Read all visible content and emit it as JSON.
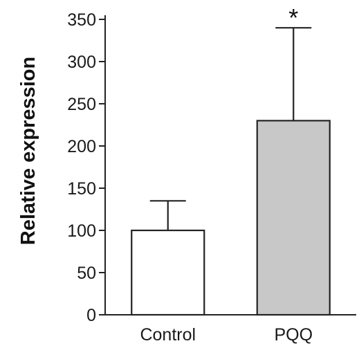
{
  "chart_data": {
    "type": "bar",
    "title": "",
    "xlabel": "",
    "ylabel": "Relative expression",
    "ylim": [
      0,
      350
    ],
    "yticks": [
      0,
      50,
      100,
      150,
      200,
      250,
      300,
      350
    ],
    "categories": [
      "Control",
      "PQQ"
    ],
    "values": [
      100,
      230
    ],
    "error_upper": [
      135,
      340
    ],
    "bar_colors": [
      "#ffffff",
      "#c8c8c8"
    ],
    "bar_stroke": "#222222",
    "annotations": [
      {
        "category": "PQQ",
        "text": "*"
      }
    ],
    "grid": false,
    "legend": "none"
  }
}
